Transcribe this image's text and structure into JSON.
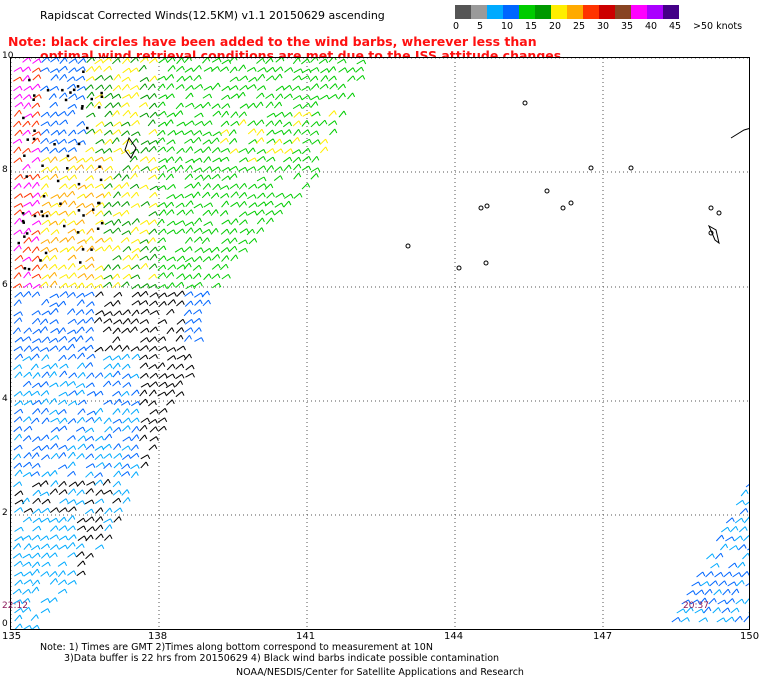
{
  "title": "Rapidscat Corrected Winds(12.5KM) v1.1 20150629 ascending",
  "note": {
    "line1": "Note: black circles have been added to the wind barbs, wherever less than",
    "line2": "optimal wind retrieval conditions are met due to the ISS attitude changes."
  },
  "colorbar": {
    "colors": [
      "#555555",
      "#9a9a9a",
      "#00aaff",
      "#0066ff",
      "#00cc00",
      "#009900",
      "#ffee00",
      "#ffaa00",
      "#ff3300",
      "#cc0000",
      "#884422",
      "#ff00ff",
      "#aa00ff",
      "#440088"
    ],
    "labels": [
      "0",
      "5",
      "10",
      "15",
      "20",
      "25",
      "30",
      "35",
      "40",
      "45",
      ">50 knots"
    ]
  },
  "axes": {
    "lat_labels": [
      "10",
      "8",
      "6",
      "4",
      "2",
      "0"
    ],
    "lon_labels": [
      "135",
      "138",
      "141",
      "144",
      "147",
      "150"
    ]
  },
  "time_labels": {
    "left": "22:12",
    "right": "20:37"
  },
  "footer": {
    "line1": "Note: 1) Times are GMT 2)Times along bottom correspond to measurement at 10N",
    "line2": "3)Data buffer is 22 hrs from 20150629 4) Black wind barbs indicate possible contamination",
    "credit": "NOAA/NESDIS/Center for Satellite Applications and Research"
  }
}
